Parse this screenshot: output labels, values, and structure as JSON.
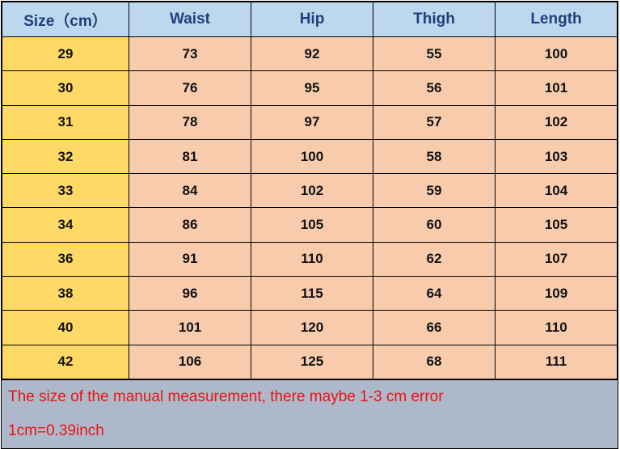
{
  "table": {
    "headers": [
      "Size（cm）",
      "Waist",
      "Hip",
      "Thigh",
      "Length"
    ],
    "rows": [
      [
        "29",
        "73",
        "92",
        "55",
        "100"
      ],
      [
        "30",
        "76",
        "95",
        "56",
        "101"
      ],
      [
        "31",
        "78",
        "97",
        "57",
        "102"
      ],
      [
        "32",
        "81",
        "100",
        "58",
        "103"
      ],
      [
        "33",
        "84",
        "102",
        "59",
        "104"
      ],
      [
        "34",
        "86",
        "105",
        "60",
        "105"
      ],
      [
        "36",
        "91",
        "110",
        "62",
        "107"
      ],
      [
        "38",
        "96",
        "115",
        "64",
        "109"
      ],
      [
        "40",
        "101",
        "120",
        "66",
        "110"
      ],
      [
        "42",
        "106",
        "125",
        "68",
        "111"
      ]
    ]
  },
  "notes": [
    "The size of the manual measurement, there maybe 1-3 cm error",
    "1cm=0.39inch"
  ],
  "colors": {
    "header": "#BDD7EE",
    "size_column": "#FFD966",
    "cells": "#F8CBAD",
    "footer": "#ADB9CA",
    "note_text": "#EE1111"
  }
}
